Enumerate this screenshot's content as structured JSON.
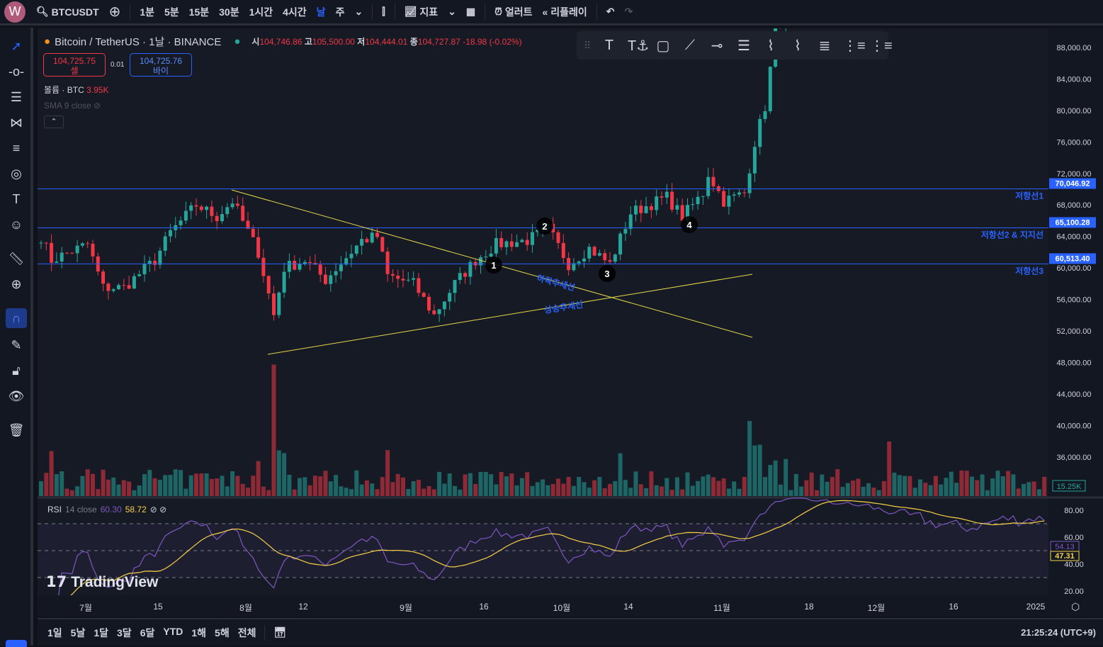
{
  "topbar": {
    "symbol": "BTCUSDT",
    "logo_letter": "W",
    "intervals": [
      "1분",
      "5분",
      "15분",
      "30분",
      "1시간",
      "4시간",
      "날",
      "주"
    ],
    "active_interval": "날",
    "indicators": "지표",
    "alert": "얼러트",
    "replay": "리플레이"
  },
  "legend": {
    "title": "Bitcoin / TetherUS · 1날 · BINANCE",
    "o_label": "시",
    "o": "104,746.86",
    "h_label": "고",
    "h": "105,500.00",
    "l_label": "저",
    "l": "104,444.01",
    "c_label": "종",
    "c": "104,727.87",
    "change": "-18.98 (-0.02%)"
  },
  "trade": {
    "sell_price": "104,725.75",
    "sell_label": "셀",
    "spread": "0.01",
    "buy_price": "104,725.76",
    "buy_label": "바이"
  },
  "volume_legend": {
    "label": "볼륨 · BTC",
    "value": "3.95K"
  },
  "sma_legend": "SMA 9 close",
  "rsi_legend": {
    "label": "RSI",
    "params": "14 close",
    "rsi": "60.30",
    "ma": "58.72",
    "rsi_last": "54.13",
    "ma_last": "47.31",
    "levels": [
      "80.00",
      "60.00",
      "40.00",
      "20.00"
    ]
  },
  "price_axis": [
    "88,000.00",
    "84,000.00",
    "80,000.00",
    "76,000.00",
    "72,000.00",
    "68,000.00",
    "64,000.00",
    "60,000.00",
    "56,000.00",
    "52,000.00",
    "48,000.00",
    "44,000.00",
    "40,000.00",
    "36,000.00"
  ],
  "volume_last": "15.25K",
  "hlines": [
    {
      "price": 70046.92,
      "label": "70,046.92",
      "name": "저항선1"
    },
    {
      "price": 65100.28,
      "label": "65,100.28",
      "name": "저항선2 & 지지선"
    },
    {
      "price": 60513.4,
      "label": "60,513.40",
      "name": "저항선3"
    }
  ],
  "trend_labels": [
    "하락추세선",
    "상승추세선"
  ],
  "markers": [
    "1",
    "2",
    "3",
    "4"
  ],
  "time_axis": [
    "7월",
    "15",
    "8월",
    "12",
    "9월",
    "16",
    "10월",
    "14",
    "11월",
    "18",
    "12월",
    "16",
    "2025"
  ],
  "ranges": [
    "1일",
    "5날",
    "1달",
    "3달",
    "6달",
    "YTD",
    "1해",
    "5해",
    "전체"
  ],
  "clock": "21:25:24 (UTC+9)",
  "watermark": "TradingView",
  "colors": {
    "up": "#26a69a",
    "down": "#f23645",
    "line": "#2962ff",
    "trend": "#e5d94a",
    "rsi": "#7e57c2",
    "rsi_ma": "#f7d046"
  },
  "chart_data": {
    "type": "candlestick",
    "price_anchors": [
      [
        0,
        64000
      ],
      [
        2,
        61000
      ],
      [
        9,
        63000
      ],
      [
        12,
        57500
      ],
      [
        16,
        57500
      ],
      [
        22,
        61000
      ],
      [
        25,
        64500
      ],
      [
        30,
        68000
      ],
      [
        34,
        66500
      ],
      [
        37,
        68500
      ],
      [
        42,
        62000
      ],
      [
        45,
        54000
      ],
      [
        47,
        60000
      ],
      [
        51,
        61000
      ],
      [
        55,
        58500
      ],
      [
        62,
        63500
      ],
      [
        65,
        64000
      ],
      [
        67,
        59000
      ],
      [
        72,
        58000
      ],
      [
        76,
        54000
      ],
      [
        80,
        58000
      ],
      [
        84,
        61000
      ],
      [
        88,
        63000
      ],
      [
        94,
        63500
      ],
      [
        98,
        65000
      ],
      [
        102,
        60500
      ],
      [
        106,
        62500
      ],
      [
        110,
        60500
      ],
      [
        114,
        67000
      ],
      [
        121,
        69000
      ],
      [
        124,
        66500
      ],
      [
        128,
        69500
      ],
      [
        129,
        72000
      ],
      [
        132,
        68500
      ],
      [
        136,
        69500
      ],
      [
        138,
        76000
      ],
      [
        140,
        80500
      ],
      [
        142,
        90000
      ],
      [
        145,
        95000
      ],
      [
        160,
        98000
      ],
      [
        180,
        100000
      ],
      [
        194,
        104700
      ]
    ],
    "days": 195
  }
}
